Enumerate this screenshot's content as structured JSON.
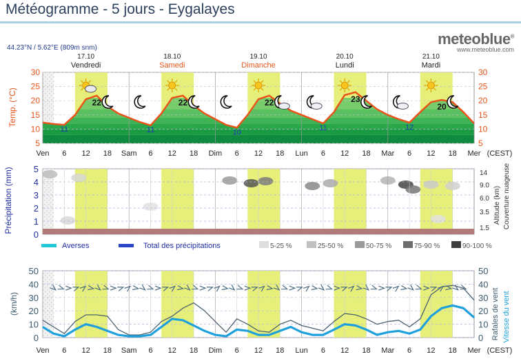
{
  "page": {
    "title": "Météogramme - 5 jours - Eygalayes",
    "coords": "44.23°N / 5.62°E (809m snm)",
    "brand_name": "meteoblue",
    "brand_mark": "®",
    "brand_url": "www.meteoblue.com"
  },
  "colors": {
    "temp": "#e8541a",
    "precip_axis": "#1f2fa0",
    "wind": "#3a5a6e",
    "gust": "#4a6070",
    "wind_speed": "#1da0dc",
    "daylight": "#e6ef7a",
    "showers": "#22c8d8",
    "total_precip": "#2b45c7",
    "weekend": "#e8541a"
  },
  "chart_data": [
    {
      "type": "area",
      "name": "temperature",
      "ylabel": "Temp. (°C)",
      "ylim": [
        5,
        30
      ],
      "yticks": [
        5,
        10,
        15,
        20,
        25,
        30
      ],
      "x_hours": [
        0,
        3,
        6,
        9,
        12,
        15,
        18,
        21,
        24,
        27,
        30,
        33,
        36,
        39,
        42,
        45,
        48,
        51,
        54,
        57,
        60,
        63,
        66,
        69,
        72,
        75,
        78,
        81,
        84,
        87,
        90,
        93,
        96,
        99,
        102,
        105,
        108,
        111,
        114,
        117,
        120
      ],
      "values": [
        12.3,
        11.8,
        11.5,
        15.0,
        20.5,
        21.8,
        18.0,
        15.5,
        14.0,
        12.5,
        11.3,
        15.5,
        21.0,
        21.8,
        18.3,
        15.5,
        13.5,
        11.5,
        10.5,
        15.0,
        20.5,
        21.8,
        19.0,
        16.5,
        15.0,
        13.5,
        12.0,
        16.0,
        22.0,
        23.0,
        20.0,
        17.0,
        15.0,
        13.5,
        12.3,
        16.0,
        19.5,
        20.3,
        19.5,
        16.0,
        12.0
      ],
      "max_labels": [
        "22",
        "22",
        "22",
        "23",
        "20"
      ],
      "min_labels": [
        "11",
        "11",
        "10",
        "11",
        "12"
      ],
      "weather_icons": [
        {
          "hour": 12,
          "icon": "sun-cloud-icon"
        },
        {
          "hour": 18,
          "icon": "moon-icon"
        },
        {
          "hour": 27,
          "icon": "moon-icon"
        },
        {
          "hour": 36,
          "icon": "sun-icon"
        },
        {
          "hour": 42,
          "icon": "moon-icon"
        },
        {
          "hour": 51,
          "icon": "moon-icon"
        },
        {
          "hour": 60,
          "icon": "sun-icon"
        },
        {
          "hour": 66,
          "icon": "moon-cloud-icon"
        },
        {
          "hour": 75,
          "icon": "moon-cloud-icon"
        },
        {
          "hour": 84,
          "icon": "sun-icon"
        },
        {
          "hour": 90,
          "icon": "moon-icon"
        },
        {
          "hour": 99,
          "icon": "moon-cloud-icon"
        },
        {
          "hour": 108,
          "icon": "sun-icon"
        },
        {
          "hour": 114,
          "icon": "moon-icon"
        }
      ]
    },
    {
      "type": "bar",
      "name": "precipitation",
      "ylabel": "Précipitation (mm)",
      "ylim": [
        0,
        5
      ],
      "yticks": [
        0,
        1,
        2,
        3,
        4,
        5
      ],
      "y2label_1": "Altitude (km)",
      "y2label_2": "Couverture nuageuse",
      "y2ticks": [
        "1.5",
        "3.5",
        "6.0",
        "9.0",
        "14"
      ],
      "legend": {
        "showers": "Averses",
        "total": "Total des précipitations",
        "cloud_classes": [
          "5-25 %",
          "25-50 %",
          "50-75 %",
          "75-90 %",
          "90-100 %"
        ]
      },
      "values": []
    },
    {
      "type": "line",
      "name": "wind",
      "ylabel": "(km/h)",
      "ylim": [
        0,
        50
      ],
      "yticks": [
        0,
        10,
        20,
        30,
        40,
        50
      ],
      "y2label_1": "Rafales de vent",
      "y2label_2": "Vitesse du vent",
      "x_hours": [
        0,
        3,
        6,
        9,
        12,
        15,
        18,
        21,
        24,
        27,
        30,
        33,
        36,
        39,
        42,
        45,
        48,
        51,
        54,
        57,
        60,
        63,
        66,
        69,
        72,
        75,
        78,
        81,
        84,
        87,
        90,
        93,
        96,
        99,
        102,
        105,
        108,
        111,
        114,
        117,
        120
      ],
      "series": [
        {
          "name": "Rafales de vent",
          "values": [
            13,
            8,
            3,
            12,
            17,
            17,
            16,
            6,
            2,
            2,
            4,
            12,
            16,
            22,
            26,
            20,
            12,
            4,
            14,
            10,
            5,
            4,
            10,
            13,
            9,
            7,
            5,
            12,
            18,
            17,
            14,
            10,
            12,
            13,
            8,
            14,
            32,
            38,
            39,
            37,
            28
          ]
        },
        {
          "name": "Vitesse du vent",
          "values": [
            8,
            3,
            1,
            6,
            10,
            8,
            5,
            2,
            1,
            1,
            2,
            8,
            14,
            13,
            9,
            5,
            2,
            1,
            6,
            5,
            2,
            2,
            5,
            8,
            4,
            2,
            2,
            6,
            10,
            9,
            6,
            2,
            4,
            5,
            3,
            6,
            16,
            22,
            24,
            22,
            15
          ]
        }
      ],
      "direction_arrows": 56
    }
  ],
  "axis": {
    "days": [
      {
        "date": "17.10",
        "name": "Vendredi",
        "weekend": false
      },
      {
        "date": "18.10",
        "name": "Samedi",
        "weekend": true
      },
      {
        "date": "19.10",
        "name": "Dimanche",
        "weekend": true
      },
      {
        "date": "20.10",
        "name": "Lundi",
        "weekend": false
      },
      {
        "date": "21.10",
        "name": "Mardi",
        "weekend": false
      }
    ],
    "ticks": [
      "Ven",
      "6",
      "12",
      "18",
      "Sam",
      "6",
      "12",
      "18",
      "Dim",
      "6",
      "12",
      "18",
      "Lun",
      "6",
      "12",
      "18",
      "Mar",
      "6",
      "12",
      "18",
      "Mer"
    ],
    "timezone": "(CEST)"
  }
}
